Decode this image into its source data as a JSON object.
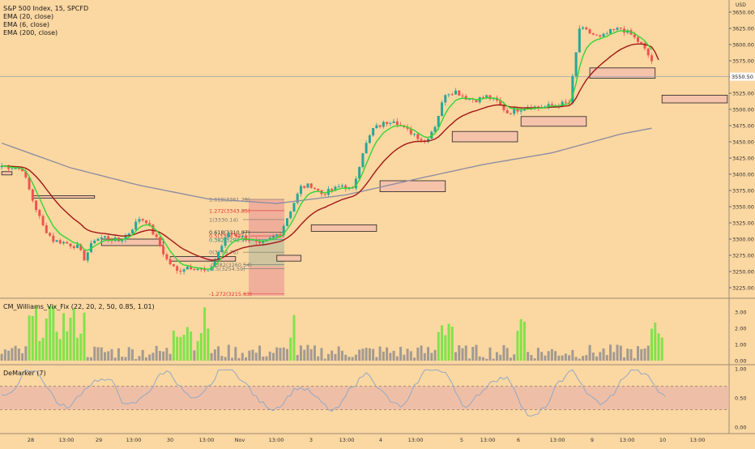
{
  "header": {
    "symbol": "S&P 500 Index, 15, SPCFD",
    "indicators": [
      "EMA (20, close)",
      "EMA (6, close)",
      "EMA (200, close)"
    ]
  },
  "price_axis": {
    "currency": "USD",
    "ticks": [
      "3650.00",
      "3625.00",
      "3600.00",
      "3575.00",
      "3550.00",
      "3525.00",
      "3500.00",
      "3475.00",
      "3450.00",
      "3425.00",
      "3400.00",
      "3375.00",
      "3350.00",
      "3325.00",
      "3300.00",
      "3275.00",
      "3250.00",
      "3225.00"
    ],
    "last_price": "3550.50"
  },
  "fib_labels": [
    "1.618(3361.29)",
    "1.272(3343.85)",
    "1(3330.14)",
    "0.618(3310.87)",
    "0.5(3304.92)",
    "0.382(3298.97)",
    "0(3279.76)",
    "-0.382(3260.54)",
    "-0.5(3254.59)",
    "-1.272(3215.63)"
  ],
  "time_axis": [
    "28",
    "13:00",
    "29",
    "13:00",
    "30",
    "13:00",
    "Nov",
    "13:00",
    "3",
    "13:00",
    "4",
    "13:00",
    "5",
    "13:00",
    "6",
    "13:00",
    "9",
    "13:00",
    "10",
    "13:00"
  ],
  "vix_pane": {
    "title": "CM_Williams_Vix_Fix (22, 20, 2, 50, 0.85, 1.01)",
    "ticks": [
      "3.00",
      "2.00",
      "1.00",
      "0.00"
    ]
  },
  "demarker_pane": {
    "title": "DeMarker (7)",
    "ticks": [
      "1.00",
      "0.50",
      "0.00"
    ]
  },
  "colors": {
    "background": "#fbd7a1",
    "up": "#26a69a",
    "down": "#ef5350",
    "ema_fast": "#33d633",
    "ema_mid": "#a01818",
    "ema_slow": "#8f8fa3",
    "vix_spike": "#7fe34a",
    "vix_normal": "#a29a92",
    "demarker_line": "#93a9c7",
    "demarker_band": "#e8b5a8"
  },
  "chart_data": [
    {
      "type": "candlestick",
      "title": "S&P 500 Index, 15, SPCFD",
      "ylim": [
        3210,
        3655
      ],
      "series": [
        {
          "name": "EMA (20, close)"
        },
        {
          "name": "EMA (6, close)"
        },
        {
          "name": "EMA (200, close)"
        }
      ],
      "close_path": [
        [
          0,
          3413
        ],
        [
          6,
          3408
        ],
        [
          9,
          3360
        ],
        [
          12,
          3320
        ],
        [
          15,
          3298
        ],
        [
          18,
          3295
        ],
        [
          22,
          3288
        ],
        [
          24,
          3270
        ],
        [
          27,
          3300
        ],
        [
          30,
          3303
        ],
        [
          34,
          3297
        ],
        [
          37,
          3310
        ],
        [
          40,
          3332
        ],
        [
          42,
          3328
        ],
        [
          45,
          3300
        ],
        [
          48,
          3268
        ],
        [
          51,
          3250
        ],
        [
          54,
          3258
        ],
        [
          57,
          3255
        ],
        [
          60,
          3248
        ],
        [
          63,
          3280
        ],
        [
          66,
          3310
        ],
        [
          69,
          3305
        ],
        [
          72,
          3300
        ],
        [
          75,
          3290
        ],
        [
          78,
          3300
        ],
        [
          81,
          3310
        ],
        [
          84,
          3345
        ],
        [
          87,
          3380
        ],
        [
          90,
          3383
        ],
        [
          93,
          3370
        ],
        [
          96,
          3375
        ],
        [
          99,
          3383
        ],
        [
          102,
          3375
        ],
        [
          105,
          3435
        ],
        [
          108,
          3470
        ],
        [
          111,
          3478
        ],
        [
          114,
          3485
        ],
        [
          117,
          3470
        ],
        [
          120,
          3462
        ],
        [
          123,
          3450
        ],
        [
          126,
          3475
        ],
        [
          129,
          3525
        ],
        [
          132,
          3528
        ],
        [
          135,
          3518
        ],
        [
          138,
          3515
        ],
        [
          141,
          3520
        ],
        [
          144,
          3512
        ],
        [
          147,
          3495
        ],
        [
          150,
          3500
        ],
        [
          153,
          3505
        ],
        [
          156,
          3503
        ],
        [
          159,
          3505
        ],
        [
          162,
          3508
        ],
        [
          165,
          3510
        ],
        [
          168,
          3625
        ],
        [
          171,
          3618
        ],
        [
          174,
          3610
        ],
        [
          177,
          3620
        ],
        [
          180,
          3625
        ],
        [
          183,
          3615
        ],
        [
          186,
          3600
        ],
        [
          189,
          3575
        ]
      ],
      "ema200_path": [
        [
          0,
          3448
        ],
        [
          20,
          3410
        ],
        [
          40,
          3383
        ],
        [
          60,
          3362
        ],
        [
          80,
          3355
        ],
        [
          100,
          3368
        ],
        [
          120,
          3392
        ],
        [
          140,
          3415
        ],
        [
          160,
          3433
        ],
        [
          180,
          3462
        ],
        [
          190,
          3472
        ]
      ],
      "support_boxes": [
        {
          "x0": 0,
          "x1": 3,
          "y0": 3404,
          "y1": 3399
        },
        {
          "x0": 9,
          "x1": 27,
          "y0": 3367,
          "y1": 3364
        },
        {
          "x0": 29,
          "x1": 47,
          "y0": 3300,
          "y1": 3290
        },
        {
          "x0": 49,
          "x1": 68,
          "y0": 3273,
          "y1": 3266
        },
        {
          "x0": 80,
          "x1": 87,
          "y0": 3275,
          "y1": 3266
        },
        {
          "x0": 90,
          "x1": 109,
          "y0": 3322,
          "y1": 3312
        },
        {
          "x0": 110,
          "x1": 129,
          "y0": 3390,
          "y1": 3373
        },
        {
          "x0": 131,
          "x1": 150,
          "y0": 3466,
          "y1": 3450
        },
        {
          "x0": 151,
          "x1": 170,
          "y0": 3489,
          "y1": 3474
        },
        {
          "x0": 171,
          "x1": 190,
          "y0": 3564,
          "y1": 3548
        },
        {
          "x0": 192,
          "x1": 211,
          "y0": 3522,
          "y1": 3510
        }
      ]
    },
    {
      "type": "bar",
      "title": "CM_Williams_Vix_Fix (22, 20, 2, 50, 0.85, 1.01)",
      "ylim": [
        0,
        3.5
      ],
      "spikes": [
        [
          8,
          24
        ],
        [
          50,
          55
        ],
        [
          57,
          60
        ],
        [
          84,
          85
        ],
        [
          127,
          131
        ],
        [
          150,
          152
        ],
        [
          189,
          192
        ]
      ]
    },
    {
      "type": "line",
      "title": "DeMarker (7)",
      "ylim": [
        0,
        1
      ],
      "bands": [
        0.3,
        0.7
      ]
    }
  ]
}
